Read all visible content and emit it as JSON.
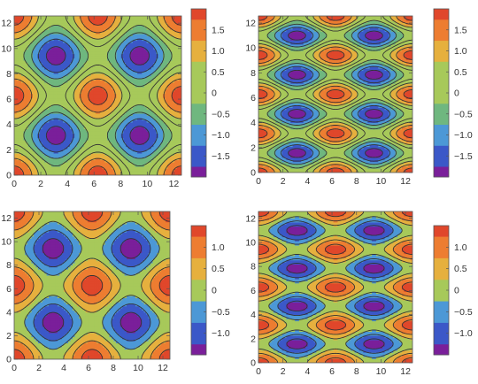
{
  "chart_data": [
    {
      "type": "heatmap",
      "title": "",
      "function": "cos(x) + cos(y)",
      "xlim": [
        0,
        12.57
      ],
      "ylim": [
        0,
        12.57
      ],
      "xticks": [
        "0",
        "2",
        "4",
        "6",
        "8",
        "10",
        "12"
      ],
      "yticks": [
        "0",
        "2",
        "4",
        "6",
        "8",
        "10",
        "12"
      ],
      "contour_levels": [
        -1.75,
        -1.25,
        -0.75,
        -0.25,
        0.25,
        0.75,
        1.25,
        1.75
      ],
      "colorbar": {
        "range": [
          -2,
          2
        ],
        "ticks": [
          1.5,
          1.0,
          0.5,
          0,
          -0.5,
          -1.0,
          -1.5
        ],
        "tick_labels": [
          "1.5",
          "1.0",
          "0.5",
          "0",
          "−0.5",
          "−1.0",
          "−1.5"
        ]
      }
    },
    {
      "type": "heatmap",
      "title": "",
      "function": "cos(x) + cos(2y)",
      "xlim": [
        0,
        12.57
      ],
      "ylim": [
        0,
        12.57
      ],
      "xticks": [
        "0",
        "2",
        "4",
        "6",
        "8",
        "10",
        "12"
      ],
      "yticks": [
        "0",
        "2",
        "4",
        "6",
        "8",
        "10",
        "12"
      ],
      "contour_levels": [
        -1.75,
        -1.25,
        -0.75,
        -0.25,
        0.25,
        0.75,
        1.25,
        1.75
      ],
      "colorbar": {
        "range": [
          -2,
          2
        ],
        "ticks": [
          1.5,
          1.0,
          0.5,
          0,
          -0.5,
          -1.0,
          -1.5
        ],
        "tick_labels": [
          "1.5",
          "1.0",
          "0.5",
          "0",
          "−0.5",
          "−1.0",
          "−1.5"
        ]
      }
    },
    {
      "type": "heatmap",
      "title": "",
      "function": "(cos(x) + cos(y)) * 0.75",
      "xlim": [
        0,
        12.57
      ],
      "ylim": [
        0,
        12.57
      ],
      "xticks": [
        "0",
        "2",
        "4",
        "6",
        "8",
        "10",
        "12"
      ],
      "yticks": [
        "0",
        "2",
        "4",
        "6",
        "8",
        "10",
        "12"
      ],
      "contour_levels": [
        -1.25,
        -0.75,
        -0.25,
        0.25,
        0.75,
        1.25
      ],
      "colorbar": {
        "range": [
          -1.5,
          1.5
        ],
        "ticks": [
          1.0,
          0.5,
          0,
          -0.5,
          -1.0
        ],
        "tick_labels": [
          "1.0",
          "0.5",
          "0",
          "−0.5",
          "−1.0"
        ]
      }
    },
    {
      "type": "heatmap",
      "title": "",
      "function": "(cos(x) + cos(2y)) * 0.75",
      "xlim": [
        0,
        12.57
      ],
      "ylim": [
        0,
        12.57
      ],
      "xticks": [
        "0",
        "2",
        "4",
        "6",
        "8",
        "10",
        "12"
      ],
      "yticks": [
        "0",
        "2",
        "4",
        "6",
        "8",
        "10",
        "12"
      ],
      "contour_levels": [
        -1.25,
        -0.75,
        -0.25,
        0.25,
        0.75,
        1.25
      ],
      "colorbar": {
        "range": [
          -1.5,
          1.5
        ],
        "ticks": [
          1.0,
          0.5,
          0,
          -0.5,
          -1.0
        ],
        "tick_labels": [
          "1.0",
          "0.5",
          "0",
          "−0.5",
          "−1.0"
        ]
      }
    }
  ],
  "palette": [
    "#7a1f9a",
    "#3b58c8",
    "#4c98d6",
    "#6fb77f",
    "#a7c95a",
    "#e6b03e",
    "#ed7d31",
    "#e0472b"
  ]
}
